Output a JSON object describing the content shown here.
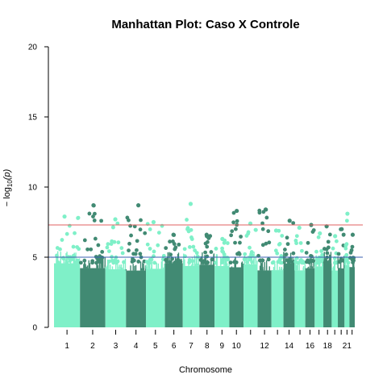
{
  "chart_data": {
    "type": "scatter",
    "title": "Manhattan Plot: Caso X Controle",
    "xlabel": "Chromosome",
    "ylabel_prefix": "− log",
    "ylabel_sub": "10",
    "ylabel_arg": "(p)",
    "ylim": [
      0,
      20
    ],
    "yticks": [
      0,
      5,
      10,
      15,
      20
    ],
    "xtick_labels": [
      "1",
      "2",
      "3",
      "4",
      "5",
      "6",
      "7",
      "8",
      "9",
      "10",
      "12",
      "14",
      "16",
      "18",
      "21"
    ],
    "chromosomes": [
      "1",
      "2",
      "3",
      "4",
      "5",
      "6",
      "7",
      "8",
      "9",
      "10",
      "11",
      "12",
      "13",
      "14",
      "15",
      "16",
      "17",
      "18",
      "19",
      "20",
      "21",
      "22"
    ],
    "chromosome_peak_log10p": [
      7.9,
      8.7,
      7.7,
      8.7,
      7.5,
      6.6,
      8.8,
      6.6,
      6.3,
      8.3,
      7.4,
      8.4,
      6.9,
      7.6,
      7.1,
      7.3,
      6.7,
      7.2,
      6.5,
      7.0,
      8.1,
      6.6
    ],
    "colors": [
      "#7ff0c8",
      "#418a73"
    ],
    "legend": "none",
    "grid": false,
    "reference_lines": [
      {
        "y": 7.3,
        "color": "#e06060"
      },
      {
        "y": 5.0,
        "color": "#3a5fb0"
      }
    ]
  }
}
